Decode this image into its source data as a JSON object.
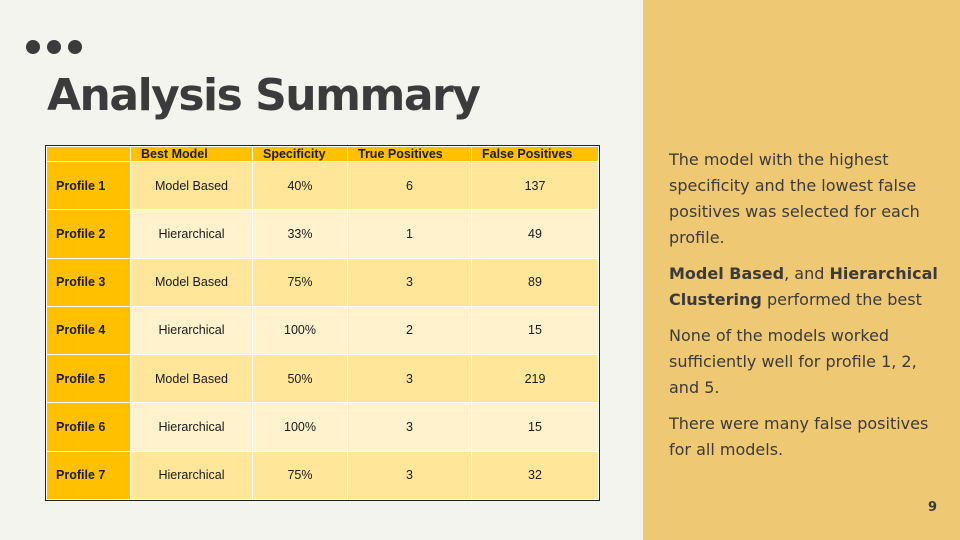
{
  "slide": {
    "title": "Analysis Summary",
    "page_number": "9"
  },
  "table": {
    "headers": [
      "",
      "Best Model",
      "Specificity",
      "True Positives",
      "False Positives"
    ],
    "rows": [
      {
        "profile": "Profile 1",
        "model": "Model Based",
        "specificity": "40%",
        "true_positives": "6",
        "false_positives": "137"
      },
      {
        "profile": "Profile 2",
        "model": "Hierarchical",
        "specificity": "33%",
        "true_positives": "1",
        "false_positives": "49"
      },
      {
        "profile": "Profile 3",
        "model": "Model Based",
        "specificity": "75%",
        "true_positives": "3",
        "false_positives": "89"
      },
      {
        "profile": "Profile 4",
        "model": "Hierarchical",
        "specificity": "100%",
        "true_positives": "2",
        "false_positives": "15"
      },
      {
        "profile": "Profile 5",
        "model": "Model Based",
        "specificity": "50%",
        "true_positives": "3",
        "false_positives": "219"
      },
      {
        "profile": "Profile 6",
        "model": "Hierarchical",
        "specificity": "100%",
        "true_positives": "3",
        "false_positives": "15"
      },
      {
        "profile": "Profile 7",
        "model": "Hierarchical",
        "specificity": "75%",
        "true_positives": "3",
        "false_positives": "32"
      }
    ]
  },
  "notes": {
    "p1": "The model with the highest specificity and the lowest false positives was selected for each profile.",
    "p2_bold1": "Model Based",
    "p2_mid": ", and ",
    "p2_bold2": "Hierarchical Clustering",
    "p2_end": " performed the best",
    "p3": "None of the models worked sufficiently well for profile 1, 2, and 5.",
    "p4": "There were many false positives for all models."
  },
  "colors": {
    "background": "#f4f4ef",
    "side_panel": "#eec872",
    "header_fill": "#ffc000",
    "row_fill_dark": "#ffe699",
    "row_fill_light": "#fff2cc",
    "text": "#3b3b3b"
  }
}
